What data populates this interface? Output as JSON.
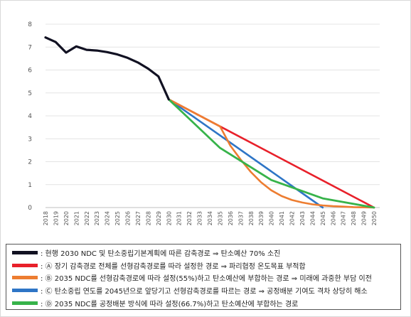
{
  "chart_data": {
    "type": "line",
    "x": [
      2018,
      2019,
      2020,
      2021,
      2022,
      2023,
      2024,
      2025,
      2026,
      2027,
      2028,
      2029,
      2030,
      2031,
      2032,
      2033,
      2034,
      2035,
      2036,
      2037,
      2038,
      2039,
      2040,
      2041,
      2042,
      2043,
      2044,
      2045,
      2046,
      2047,
      2048,
      2049,
      2050
    ],
    "x_tick_labels": [
      "2018",
      "2019",
      "2020",
      "2021",
      "2022",
      "2023",
      "2024",
      "2025",
      "2026",
      "2027",
      "2028",
      "2029",
      "2030",
      "2031",
      "2032",
      "2033",
      "2034",
      "2035",
      "2036",
      "2037",
      "2038",
      "2039",
      "2040",
      "2041",
      "2042",
      "2043",
      "2044",
      "2045",
      "2046",
      "2047",
      "2048",
      "2049",
      "2050"
    ],
    "y_ticks": [
      0,
      1,
      2,
      3,
      4,
      5,
      6,
      7,
      8
    ],
    "ylim": [
      0,
      8
    ],
    "xlim": [
      2018,
      2050
    ],
    "grid": true,
    "legend_position": "bottom",
    "series": [
      {
        "name": ": 현행 2030 NDC 및 탄소중립기본계획에 따른 감축경로 ⇒ 탄소예산 70% 소진",
        "color": "#111122",
        "x": [
          2018,
          2019,
          2020,
          2021,
          2022,
          2023,
          2024,
          2025,
          2026,
          2027,
          2028,
          2029,
          2030
        ],
        "y": [
          7.42,
          7.22,
          6.76,
          7.03,
          6.88,
          6.85,
          6.78,
          6.68,
          6.53,
          6.33,
          6.06,
          5.72,
          4.72
        ]
      },
      {
        "name": ": Ⓐ 장기 감축경로 전체를 선형감축경로를 따라 설정한 경로 ⇒ 파리협정 온도목표 부적합",
        "color": "#e8202a",
        "x": [
          2030,
          2035,
          2050
        ],
        "y": [
          4.72,
          3.54,
          0.0
        ]
      },
      {
        "name": ": Ⓑ 2035 NDC를 선형감축경로에 따라 설정(55%)하고 탄소예산에 부합하는 경로 ⇒ 미래에 과중한 부담 이전",
        "color": "#ed7d31",
        "x": [
          2030,
          2035,
          2036,
          2037,
          2038,
          2039,
          2040,
          2041,
          2042,
          2043,
          2044,
          2045,
          2046,
          2047,
          2048,
          2049,
          2050
        ],
        "y": [
          4.72,
          3.54,
          2.7,
          2.1,
          1.55,
          1.1,
          0.75,
          0.5,
          0.33,
          0.22,
          0.14,
          0.09,
          0.06,
          0.04,
          0.02,
          0.01,
          0.0
        ]
      },
      {
        "name": ": Ⓒ 탄소중립 연도를 2045년으로 앞당기고 선형감축경로를 따르는 경로 ⇒ 공정배분 기여도 격차 상당히 해소",
        "color": "#2e75c6",
        "x": [
          2030,
          2045
        ],
        "y": [
          4.72,
          0.0
        ]
      },
      {
        "name": ": Ⓓ 2035 NDC를 공정배분 방식에 따라 설정(66.7%)하고 탄소예산에 부합하는 경로",
        "color": "#37b34a",
        "x": [
          2030,
          2035,
          2040,
          2045,
          2050
        ],
        "y": [
          4.72,
          2.6,
          1.2,
          0.4,
          0.0
        ]
      }
    ]
  }
}
